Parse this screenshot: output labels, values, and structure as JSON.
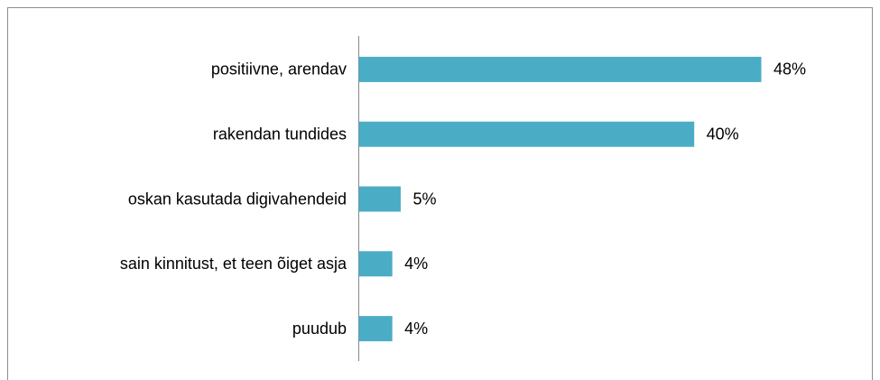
{
  "chart_data": {
    "type": "bar",
    "orientation": "horizontal",
    "categories": [
      "positiivne, arendav",
      "rakendan tundides",
      "oskan kasutada digivahendeid",
      "sain kinnitust, et teen õiget asja",
      "puudub"
    ],
    "values": [
      48,
      40,
      5,
      4,
      4
    ],
    "value_labels": [
      "48%",
      "40%",
      "5%",
      "4%",
      "4%"
    ],
    "color": "#4bacc6"
  }
}
